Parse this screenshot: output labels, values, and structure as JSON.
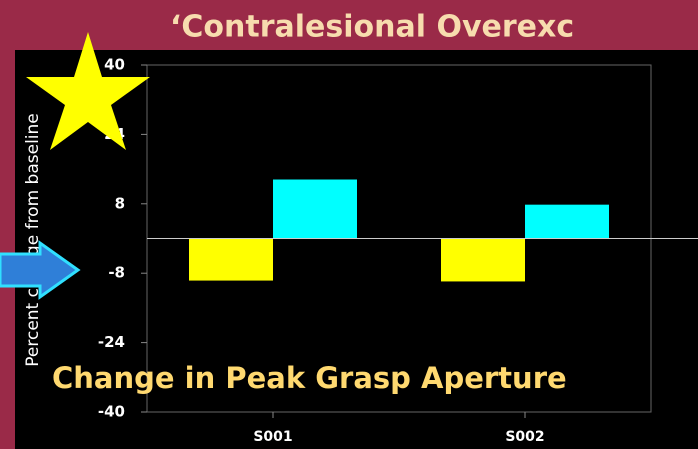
{
  "chart_data": {
    "type": "bar",
    "title": "‘Contralesional Overexc",
    "ylabel": "Percent change from baseline",
    "annotation": "Change in Peak Grasp Aperture",
    "categories": [
      "S001",
      "S002"
    ],
    "series": [
      {
        "color": "#ffff00",
        "values": [
          -9.7,
          -9.9
        ]
      },
      {
        "color": "#00ffff",
        "values": [
          13.6,
          7.8
        ]
      }
    ],
    "ylim": [
      -40,
      40
    ],
    "yticks": [
      -40,
      -24,
      -8,
      8,
      24,
      40
    ]
  }
}
